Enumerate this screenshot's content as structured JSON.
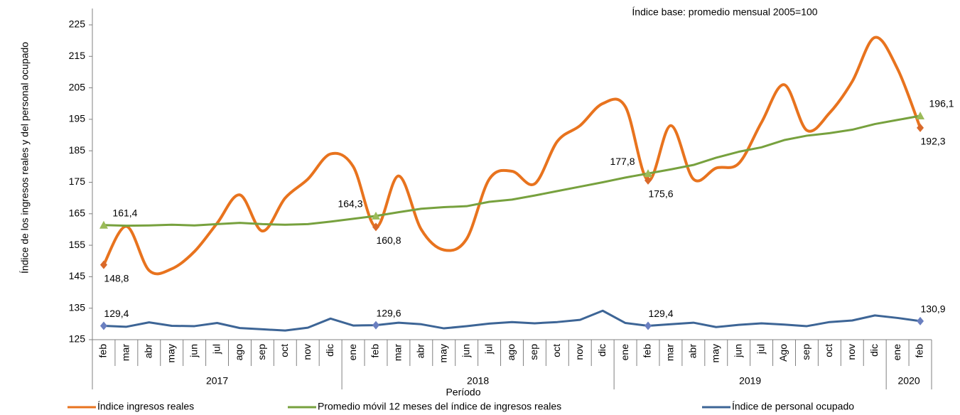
{
  "chart_data": {
    "type": "line",
    "annotation": "Índice base: promedio mensual 2005=100",
    "y_label": "Índice de los ingresos reales y del personal ocupado",
    "x_label": "Período",
    "periods": [
      {
        "year": "2017",
        "months": [
          "feb",
          "mar",
          "abr",
          "may",
          "jun",
          "jul",
          "ago",
          "sep",
          "oct",
          "nov",
          "dic"
        ]
      },
      {
        "year": "2018",
        "months": [
          "ene",
          "feb",
          "mar",
          "abr",
          "may",
          "jun",
          "jul",
          "ago",
          "sep",
          "oct",
          "nov",
          "dic"
        ]
      },
      {
        "year": "2019",
        "months": [
          "ene",
          "feb",
          "mar",
          "abr",
          "may",
          "jun",
          "jul",
          "Ago",
          "sep",
          "oct",
          "nov",
          "dic"
        ]
      },
      {
        "year": "2020",
        "months": [
          "ene",
          "feb"
        ]
      }
    ],
    "ylim": [
      125,
      225
    ],
    "yticks": [
      125,
      135,
      145,
      155,
      165,
      175,
      185,
      195,
      205,
      215,
      225
    ],
    "series": [
      {
        "name": "Índice ingresos reales",
        "color": "#e8731e",
        "marker_color": "#d9692a",
        "marker": "diamond",
        "smooth": true,
        "label_position": "below",
        "values": [
          148.8,
          161,
          147,
          147.5,
          153,
          162,
          171,
          159.5,
          170,
          176,
          184,
          180,
          160.8,
          177,
          160,
          153.5,
          157,
          176,
          178.5,
          174.5,
          188,
          193,
          200,
          199,
          175.6,
          193,
          176,
          179.5,
          181,
          194,
          206,
          191.5,
          197,
          207,
          221,
          211,
          192.3
        ],
        "value_labels": [
          "148,8",
          null,
          null,
          null,
          null,
          null,
          null,
          null,
          null,
          null,
          null,
          null,
          "160,8",
          null,
          null,
          null,
          null,
          null,
          null,
          null,
          null,
          null,
          null,
          null,
          "175,6",
          null,
          null,
          null,
          null,
          null,
          null,
          null,
          null,
          null,
          null,
          null,
          "192,3"
        ]
      },
      {
        "name": "Promedio móvil 12 meses del índice de ingresos reales",
        "color": "#77a13e",
        "marker_color": "#9bbb59",
        "marker": "triangle",
        "smooth": false,
        "label_position": "above",
        "values": [
          161.4,
          161.2,
          161.3,
          161.5,
          161.3,
          161.7,
          162.1,
          161.7,
          161.5,
          161.7,
          162.5,
          163.4,
          164.3,
          165.5,
          166.6,
          167.1,
          167.4,
          168.8,
          169.5,
          170.8,
          172.2,
          173.6,
          175,
          176.5,
          177.8,
          179.1,
          180.5,
          182.8,
          184.7,
          186.1,
          188.4,
          189.8,
          190.6,
          191.7,
          193.5,
          194.8,
          196.1
        ],
        "value_labels": [
          "161,4",
          null,
          null,
          null,
          null,
          null,
          null,
          null,
          null,
          null,
          null,
          null,
          "164,3",
          null,
          null,
          null,
          null,
          null,
          null,
          null,
          null,
          null,
          null,
          null,
          "177,8",
          null,
          null,
          null,
          null,
          null,
          null,
          null,
          null,
          null,
          null,
          null,
          "196,1"
        ]
      },
      {
        "name": "Índice de personal ocupado",
        "color": "#3d6596",
        "marker_color": "#6a7fc0",
        "marker": "diamond",
        "smooth": false,
        "label_position": "above",
        "values": [
          129.4,
          129.1,
          130.5,
          129.4,
          129.3,
          130.3,
          128.7,
          128.3,
          127.9,
          128.8,
          131.7,
          129.5,
          129.6,
          130.4,
          129.9,
          128.6,
          129.3,
          130.1,
          130.6,
          130.2,
          130.6,
          131.3,
          134.2,
          130.3,
          129.4,
          129.9,
          130.4,
          129,
          129.7,
          130.2,
          129.8,
          129.3,
          130.6,
          131.1,
          132.7,
          131.9,
          130.9
        ],
        "value_labels": [
          "129,4",
          null,
          null,
          null,
          null,
          null,
          null,
          null,
          null,
          null,
          null,
          null,
          "129,6",
          null,
          null,
          null,
          null,
          null,
          null,
          null,
          null,
          null,
          null,
          null,
          "129,4",
          null,
          null,
          null,
          null,
          null,
          null,
          null,
          null,
          null,
          null,
          null,
          "130,9"
        ]
      }
    ]
  }
}
